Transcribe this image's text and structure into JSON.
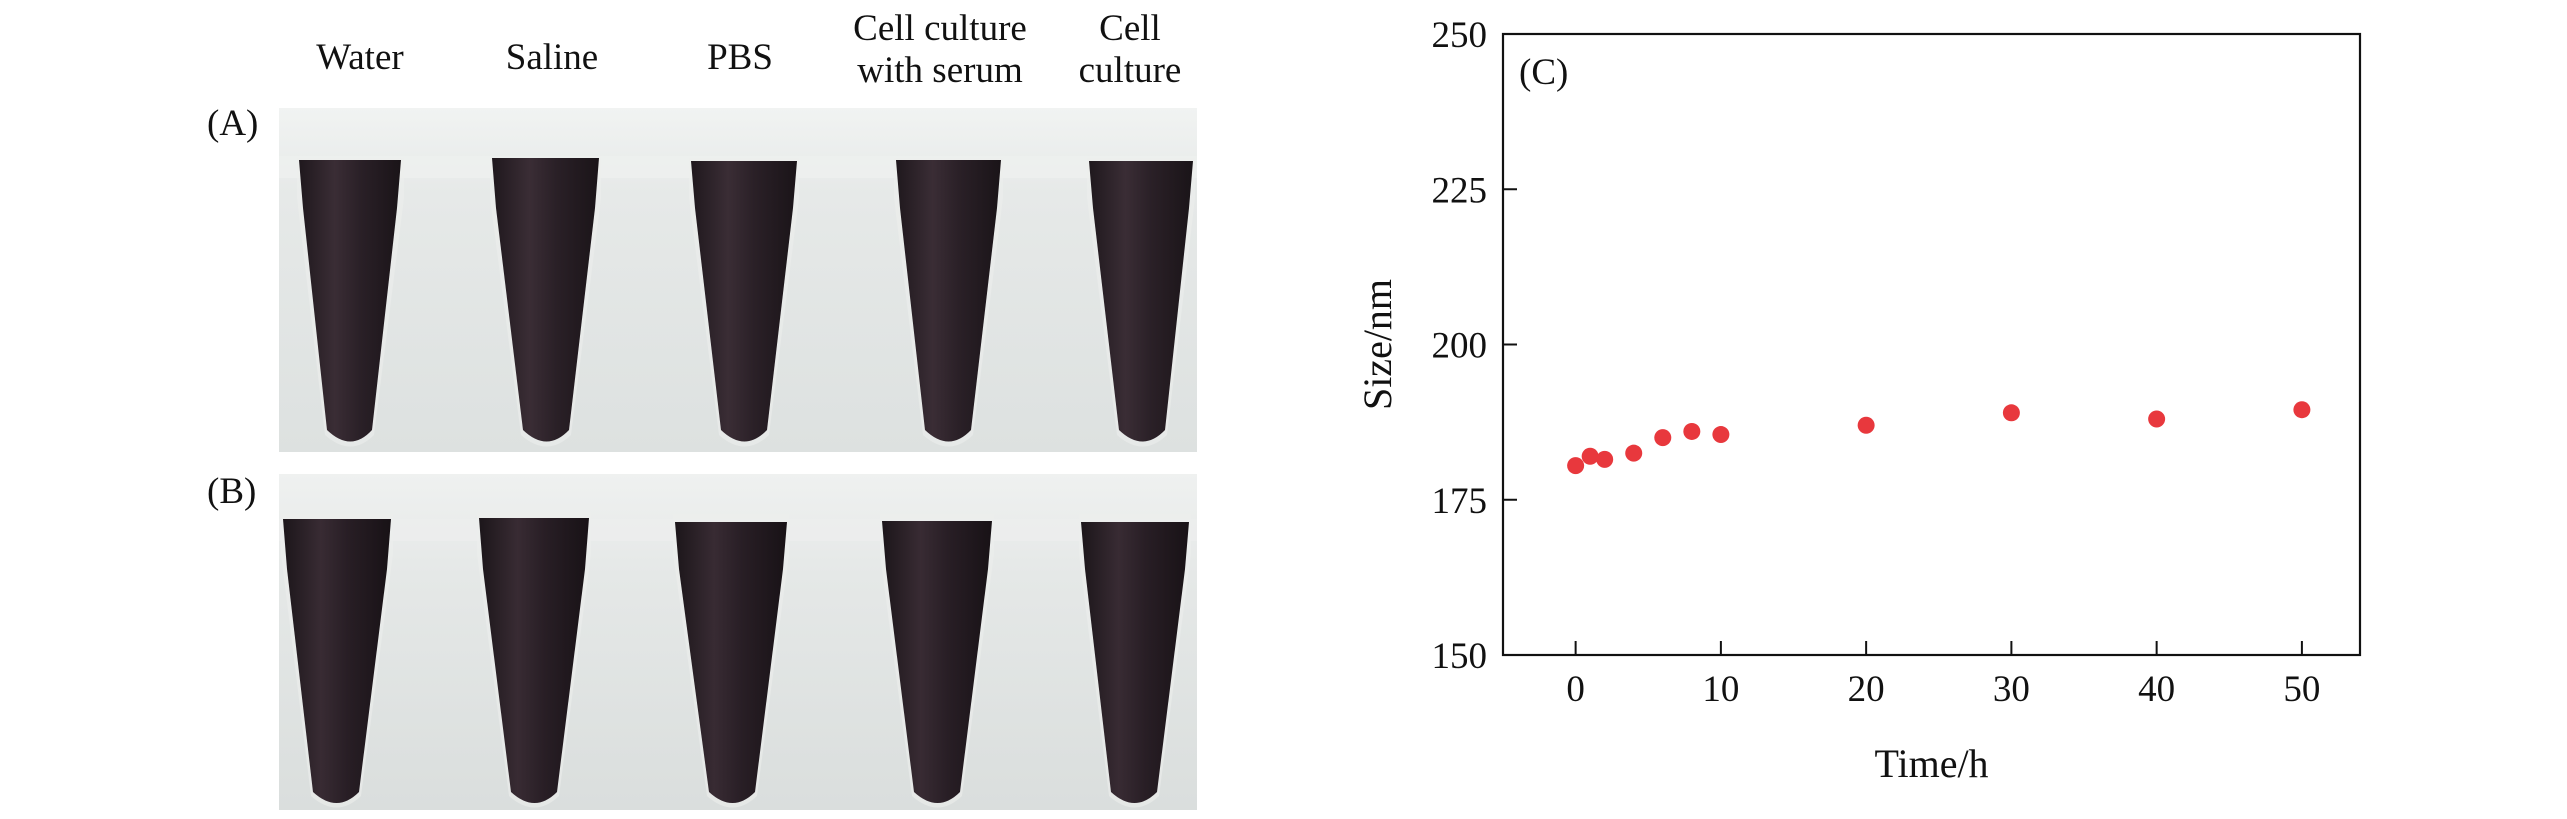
{
  "photo_panel": {
    "column_labels": [
      {
        "lines": [
          "Water"
        ]
      },
      {
        "lines": [
          "Saline"
        ]
      },
      {
        "lines": [
          "PBS"
        ]
      },
      {
        "lines": [
          "Cell culture",
          "with serum"
        ]
      },
      {
        "lines": [
          "Cell",
          "culture"
        ]
      }
    ],
    "row_labels": [
      "(A)",
      "(B)"
    ],
    "background_color": "#e4e7e6",
    "liquid_color": "#2c2229"
  },
  "chart_data": {
    "type": "scatter",
    "panel_label": "(C)",
    "title": "",
    "xlabel": "Time/h",
    "ylabel": "Size/nm",
    "xlim": [
      -5,
      54
    ],
    "ylim": [
      150,
      250
    ],
    "xticks": [
      0,
      10,
      20,
      30,
      40,
      50
    ],
    "yticks": [
      150,
      175,
      200,
      225,
      250
    ],
    "grid": false,
    "series": [
      {
        "name": "Size",
        "color": "#e8383d",
        "x": [
          0,
          1,
          2,
          4,
          6,
          8,
          10,
          20,
          30,
          40,
          50
        ],
        "y": [
          180.5,
          182,
          181.5,
          182.5,
          185,
          186,
          185.5,
          187,
          189,
          188,
          189.5
        ]
      }
    ]
  }
}
